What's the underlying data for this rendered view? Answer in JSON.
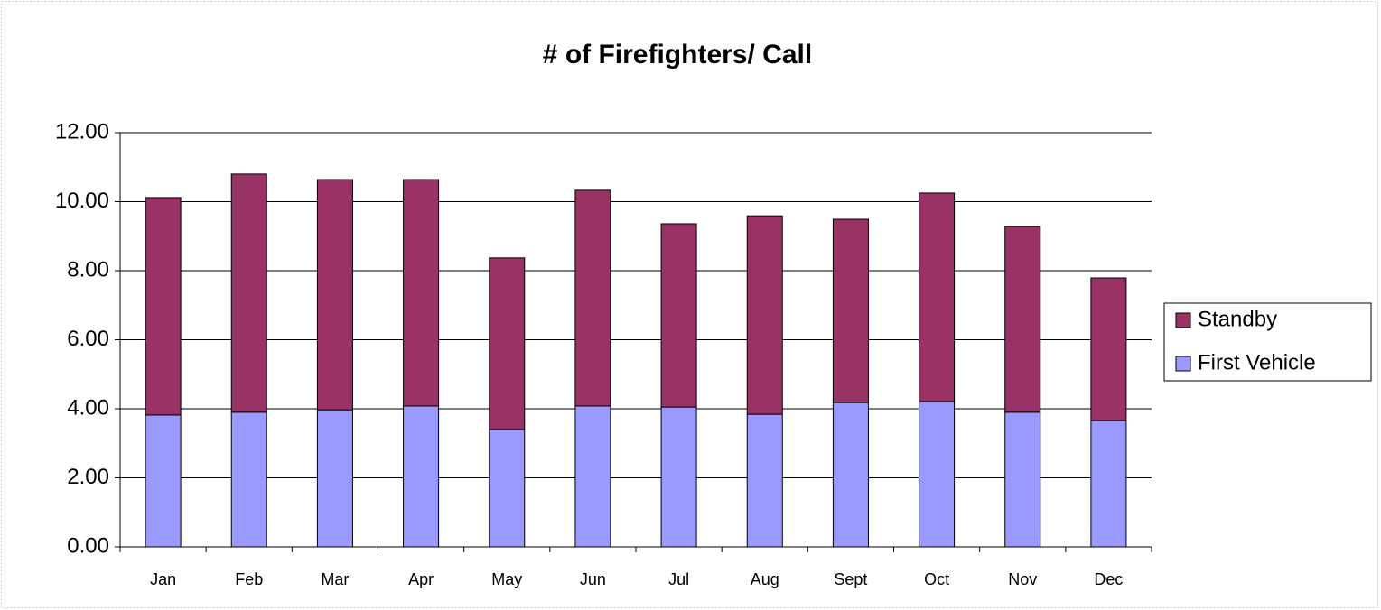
{
  "chart_data": {
    "type": "stacked_bar",
    "title": "# of Firefighters/ Call",
    "categories": [
      "Jan",
      "Feb",
      "Mar",
      "Apr",
      "May",
      "Jun",
      "Jul",
      "Aug",
      "Sept",
      "Oct",
      "Nov",
      "Dec"
    ],
    "series": [
      {
        "name": "First Vehicle",
        "color": "#9999ff",
        "values": [
          3.82,
          3.9,
          3.97,
          4.08,
          3.4,
          4.08,
          4.05,
          3.84,
          4.18,
          4.21,
          3.9,
          3.66
        ]
      },
      {
        "name": "Standby",
        "color": "#993366",
        "values": [
          6.3,
          6.9,
          6.67,
          6.56,
          4.97,
          6.25,
          5.31,
          5.75,
          5.31,
          6.04,
          5.38,
          4.13
        ]
      }
    ],
    "ylim": [
      0,
      12
    ],
    "yticks": [
      {
        "value": 0,
        "label": "0.00"
      },
      {
        "value": 2,
        "label": "2.00"
      },
      {
        "value": 4,
        "label": "4.00"
      },
      {
        "value": 6,
        "label": "6.00"
      },
      {
        "value": 8,
        "label": "8.00"
      },
      {
        "value": 10,
        "label": "10.00"
      },
      {
        "value": 12,
        "label": "12.00"
      }
    ],
    "grid": true,
    "legend": "right"
  }
}
